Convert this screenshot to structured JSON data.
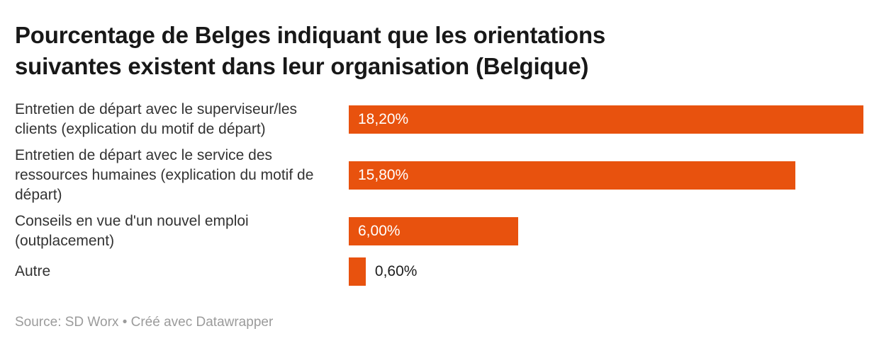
{
  "chart_data": {
    "type": "bar",
    "orientation": "horizontal",
    "title_line1": "Pourcentage de Belges indiquant que les orientations",
    "title_line2": "suivantes existent dans leur organisation (Belgique)",
    "categories": [
      "Entretien de départ avec le superviseur/les clients (explication du motif de départ)",
      "Entretien de départ avec le service des ressources humaines (explication du motif de départ)",
      "Conseils en vue d'un nouvel emploi (outplacement)",
      "Autre"
    ],
    "values": [
      18.2,
      15.8,
      6.0,
      0.6
    ],
    "value_labels": [
      "18,20%",
      "15,80%",
      "6,00%",
      "0,60%"
    ],
    "xlim": [
      0,
      18.2
    ],
    "bar_color": "#e8520e",
    "grid": "off",
    "legend": "none",
    "rows": [
      {
        "label": "Entretien de départ avec le superviseur/les clients (explication du motif de départ)",
        "value": 18.2,
        "value_label": "18,20%",
        "label_position": "inside"
      },
      {
        "label": "Entretien de départ avec le service des ressources humaines (explication du motif de départ)",
        "value": 15.8,
        "value_label": "15,80%",
        "label_position": "inside"
      },
      {
        "label": "Conseils en vue d'un nouvel emploi (outplacement)",
        "value": 6.0,
        "value_label": "6,00%",
        "label_position": "inside"
      },
      {
        "label": "Autre",
        "value": 0.6,
        "value_label": "0,60%",
        "label_position": "outside"
      }
    ],
    "source": "Source: SD Worx • Créé avec Datawrapper"
  }
}
